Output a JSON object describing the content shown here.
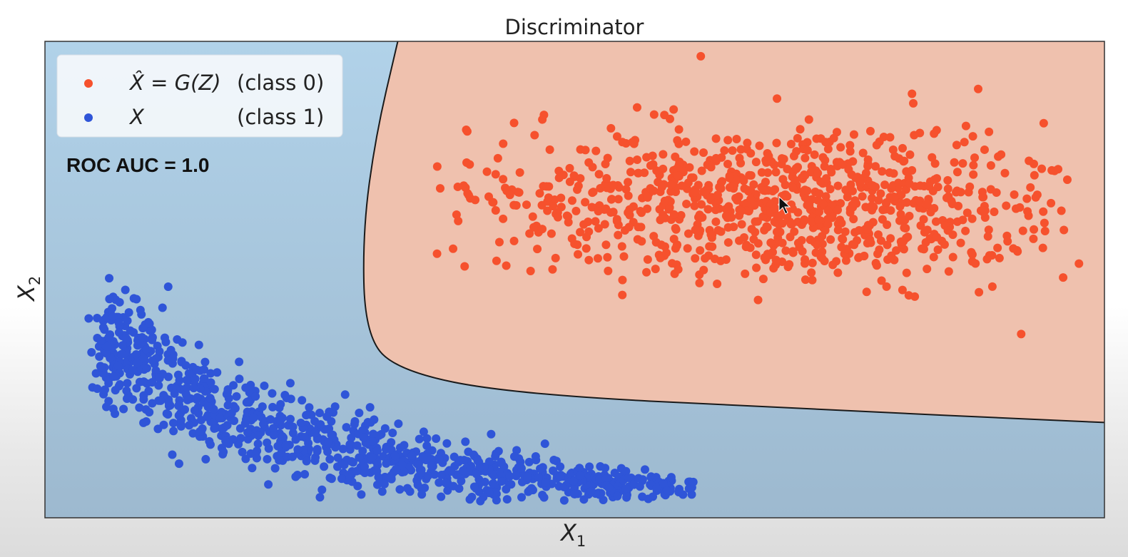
{
  "chart_data": {
    "type": "scatter",
    "title": "Discriminator",
    "xlabel": "X",
    "xlabel_sub": "1",
    "ylabel": "X",
    "ylabel_sub": "2",
    "grid": false,
    "ticks": false,
    "legend_position": "top-left",
    "annotation": "ROC AUC = 1.0",
    "colors": {
      "class0_points": "#f6512d",
      "class1_points": "#2f55d8",
      "class0_region": "#efc1ae",
      "class1_region_top": "#b1d2e9",
      "class1_region_bottom": "#9db9cf",
      "boundary": "#1a1a1a"
    },
    "series": [
      {
        "name": "X̂ = G(Z) (class 0)",
        "legend_math": "X̂ = G(Z)",
        "legend_class": "(class 0)",
        "color": "#f6512d",
        "distribution": "gaussian cluster, upper right",
        "mean": [
          0.69,
          0.34
        ],
        "std": [
          0.14,
          0.08
        ],
        "count": 950
      },
      {
        "name": "X (class 1)",
        "legend_math": "X",
        "legend_class": "(class 1)",
        "color": "#2f55d8",
        "distribution": "elongated curved band, lower left",
        "count": 950
      }
    ],
    "decision_boundary": {
      "description": "curve separating class 0 region (right/top) from class 1 region (left/bottom)",
      "points": [
        [
          0.333,
          0.0
        ],
        [
          0.312,
          0.2
        ],
        [
          0.3,
          0.4
        ],
        [
          0.302,
          0.61
        ],
        [
          0.33,
          0.69
        ],
        [
          0.44,
          0.74
        ],
        [
          0.7,
          0.77
        ],
        [
          1.0,
          0.8
        ]
      ]
    }
  }
}
